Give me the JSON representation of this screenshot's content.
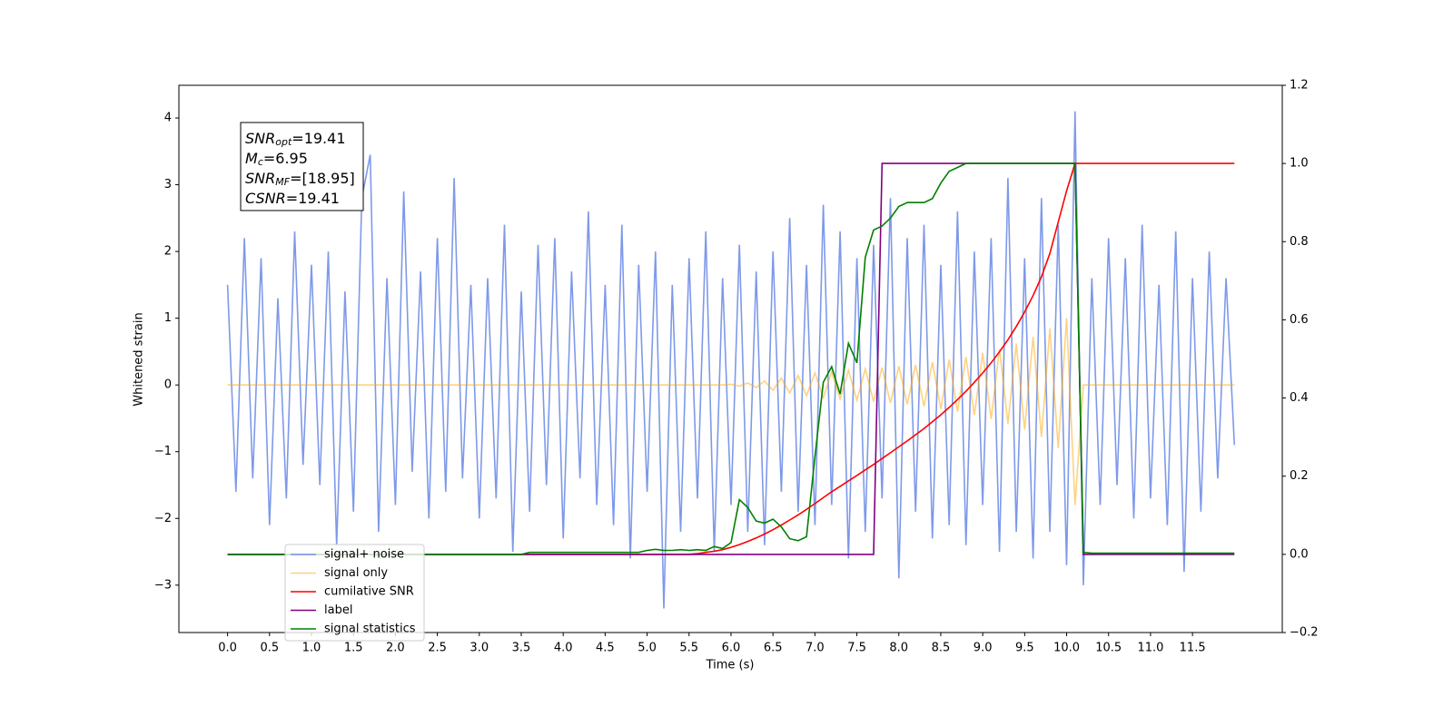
{
  "chart_data": {
    "type": "line",
    "xlabel": "Time (s)",
    "ylabel": "Whitened strain",
    "x": [
      0,
      0.1,
      0.2,
      0.3,
      0.4,
      0.5,
      0.6,
      0.7,
      0.8,
      0.9,
      1,
      1.1,
      1.2,
      1.3,
      1.4,
      1.5,
      1.6,
      1.7,
      1.8,
      1.9,
      2,
      2.1,
      2.2,
      2.3,
      2.4,
      2.5,
      2.6,
      2.7,
      2.8,
      2.9,
      3,
      3.1,
      3.2,
      3.3,
      3.4,
      3.5,
      3.6,
      3.7,
      3.8,
      3.9,
      4,
      4.1,
      4.2,
      4.3,
      4.4,
      4.5,
      4.6,
      4.7,
      4.8,
      4.9,
      5,
      5.1,
      5.2,
      5.3,
      5.4,
      5.5,
      5.6,
      5.7,
      5.8,
      5.9,
      6,
      6.1,
      6.2,
      6.3,
      6.4,
      6.5,
      6.6,
      6.7,
      6.8,
      6.9,
      7,
      7.1,
      7.2,
      7.3,
      7.4,
      7.5,
      7.6,
      7.7,
      7.8,
      7.9,
      8,
      8.1,
      8.2,
      8.3,
      8.4,
      8.5,
      8.6,
      8.7,
      8.8,
      8.9,
      9,
      9.1,
      9.2,
      9.3,
      9.4,
      9.5,
      9.6,
      9.7,
      9.8,
      9.9,
      10,
      10.1,
      10.2,
      10.3,
      10.4,
      10.5,
      10.6,
      10.7,
      10.8,
      10.9,
      11,
      11.1,
      11.2,
      11.3,
      11.4,
      11.5,
      11.6,
      11.7,
      11.8,
      11.9,
      12
    ],
    "series": [
      {
        "name": "signal+ noise",
        "color": "#7794e8",
        "axis": "y",
        "values": [
          1.5,
          -1.6,
          2.2,
          -1.4,
          1.9,
          -2.1,
          1.3,
          -1.7,
          2.3,
          -1.2,
          1.8,
          -1.5,
          2.0,
          -2.4,
          1.4,
          -1.9,
          2.8,
          3.45,
          -2.2,
          1.6,
          -1.8,
          2.9,
          -1.3,
          1.7,
          -2.0,
          2.2,
          -1.6,
          3.1,
          -1.4,
          1.5,
          -2.0,
          1.6,
          -1.7,
          2.4,
          -2.5,
          1.4,
          -1.9,
          2.1,
          -1.5,
          2.2,
          -2.3,
          1.7,
          -1.4,
          2.6,
          -1.8,
          1.5,
          -2.1,
          2.4,
          -2.6,
          1.8,
          -1.6,
          2.0,
          -3.35,
          1.5,
          -2.2,
          1.9,
          -1.7,
          2.3,
          -2.5,
          1.6,
          -1.8,
          2.1,
          -2.2,
          1.7,
          -2.4,
          2.0,
          -1.6,
          2.5,
          -1.9,
          1.8,
          -2.1,
          2.7,
          -1.8,
          2.3,
          -2.6,
          1.9,
          -2.2,
          2.1,
          -1.7,
          2.8,
          -2.9,
          2.2,
          -1.9,
          2.4,
          -2.3,
          1.8,
          -2.1,
          2.6,
          -2.4,
          2.0,
          -1.8,
          2.2,
          -2.5,
          3.1,
          -2.2,
          1.9,
          -2.6,
          2.8,
          -2.2,
          2.4,
          -2.7,
          4.1,
          -3.0,
          1.6,
          -1.8,
          2.2,
          -1.5,
          1.9,
          -2.0,
          2.4,
          -1.7,
          1.5,
          -2.1,
          2.3,
          -2.8,
          1.6,
          -1.9,
          2.0,
          -1.4,
          1.6,
          -0.9
        ]
      },
      {
        "name": "signal only",
        "color": "#ffa500",
        "axis": "y",
        "values": [
          0,
          0,
          0,
          0,
          0,
          0,
          0,
          0,
          0,
          0,
          0,
          0,
          0,
          0,
          0,
          0,
          0,
          0,
          0,
          0,
          0,
          0,
          0,
          0,
          0,
          0,
          0,
          0,
          0,
          0,
          0,
          0,
          0,
          0,
          0,
          0,
          0,
          0,
          0,
          0,
          0,
          0,
          0,
          0,
          0,
          0,
          0,
          0,
          0,
          0,
          0,
          0,
          0,
          0,
          0,
          0,
          0,
          0,
          0,
          0,
          0.01,
          -0.02,
          0.03,
          -0.04,
          0.06,
          -0.08,
          0.1,
          -0.12,
          0.14,
          -0.16,
          0.18,
          -0.19,
          0.2,
          -0.21,
          0.22,
          -0.23,
          0.24,
          -0.25,
          0.26,
          -0.27,
          0.28,
          -0.29,
          0.3,
          -0.32,
          0.34,
          -0.36,
          0.38,
          -0.4,
          0.42,
          -0.45,
          0.48,
          -0.51,
          0.54,
          -0.58,
          0.62,
          -0.67,
          0.72,
          -0.78,
          0.85,
          -0.95,
          1.0,
          -1.8,
          0,
          0,
          0,
          0,
          0,
          0,
          0,
          0,
          0,
          0,
          0,
          0,
          0,
          0,
          0,
          0,
          0,
          0,
          0
        ]
      },
      {
        "name": "cumilative SNR",
        "color": "#ff0000",
        "axis": "y2",
        "values": [
          0,
          0,
          0,
          0,
          0,
          0,
          0,
          0,
          0,
          0,
          0,
          0,
          0,
          0,
          0,
          0,
          0,
          0,
          0,
          0,
          0,
          0,
          0,
          0,
          0,
          0,
          0,
          0,
          0,
          0,
          0,
          0,
          0,
          0,
          0,
          0,
          0,
          0,
          0,
          0,
          0,
          0,
          0,
          0,
          0,
          0,
          0,
          0,
          0,
          0,
          0,
          0,
          0,
          0,
          0,
          0,
          0.002,
          0.005,
          0.008,
          0.012,
          0.018,
          0.025,
          0.033,
          0.042,
          0.052,
          0.063,
          0.075,
          0.088,
          0.101,
          0.115,
          0.13,
          0.145,
          0.16,
          0.174,
          0.188,
          0.202,
          0.216,
          0.23,
          0.245,
          0.26,
          0.275,
          0.29,
          0.306,
          0.322,
          0.339,
          0.357,
          0.376,
          0.396,
          0.417,
          0.44,
          0.464,
          0.49,
          0.518,
          0.549,
          0.583,
          0.62,
          0.662,
          0.71,
          0.77,
          0.85,
          0.93,
          1.0,
          1.0,
          1.0,
          1.0,
          1.0,
          1.0,
          1.0,
          1.0,
          1.0,
          1.0,
          1.0,
          1.0,
          1.0,
          1.0,
          1.0,
          1.0,
          1.0,
          1.0,
          1.0,
          1.0
        ]
      },
      {
        "name": "label",
        "color": "#800080",
        "axis": "y2",
        "values": [
          0,
          0,
          0,
          0,
          0,
          0,
          0,
          0,
          0,
          0,
          0,
          0,
          0,
          0,
          0,
          0,
          0,
          0,
          0,
          0,
          0,
          0,
          0,
          0,
          0,
          0,
          0,
          0,
          0,
          0,
          0,
          0,
          0,
          0,
          0,
          0,
          0,
          0,
          0,
          0,
          0,
          0,
          0,
          0,
          0,
          0,
          0,
          0,
          0,
          0,
          0,
          0,
          0,
          0,
          0,
          0,
          0,
          0,
          0,
          0,
          0,
          0,
          0,
          0,
          0,
          0,
          0,
          0,
          0,
          0,
          0,
          0,
          0,
          0,
          0,
          0,
          0,
          0,
          1,
          1,
          1,
          1,
          1,
          1,
          1,
          1,
          1,
          1,
          1,
          1,
          1,
          1,
          1,
          1,
          1,
          1,
          1,
          1,
          1,
          1,
          1,
          1,
          0,
          0,
          0,
          0,
          0,
          0,
          0,
          0,
          0,
          0,
          0,
          0,
          0,
          0,
          0,
          0,
          0,
          0,
          0
        ]
      },
      {
        "name": "signal statistics",
        "color": "#008000",
        "axis": "y2",
        "values": [
          0,
          0,
          0,
          0,
          0,
          0,
          0,
          0,
          0,
          0,
          0,
          0,
          0,
          0,
          0,
          0,
          0,
          0,
          0,
          0,
          0,
          0,
          0,
          0,
          0,
          0,
          0,
          0,
          0,
          0,
          0,
          0,
          0,
          0,
          0,
          0,
          0.005,
          0.005,
          0.005,
          0.005,
          0.005,
          0.005,
          0.005,
          0.005,
          0.005,
          0.005,
          0.005,
          0.005,
          0.005,
          0.005,
          0.01,
          0.013,
          0.01,
          0.01,
          0.012,
          0.01,
          0.012,
          0.01,
          0.02,
          0.015,
          0.03,
          0.14,
          0.12,
          0.085,
          0.08,
          0.09,
          0.07,
          0.04,
          0.035,
          0.045,
          0.25,
          0.44,
          0.48,
          0.41,
          0.54,
          0.49,
          0.76,
          0.83,
          0.84,
          0.86,
          0.89,
          0.9,
          0.9,
          0.9,
          0.91,
          0.95,
          0.98,
          0.99,
          1.0,
          1.0,
          1.0,
          1.0,
          1.0,
          1.0,
          1.0,
          1.0,
          1.0,
          1.0,
          1.0,
          1.0,
          1.0,
          1.0,
          0.005,
          0.003,
          0.003,
          0.003,
          0.003,
          0.003,
          0.003,
          0.003,
          0.003,
          0.003,
          0.003,
          0.003,
          0.003,
          0.003,
          0.003,
          0.003,
          0.003,
          0.003,
          0.003
        ]
      }
    ],
    "xlim": [
      -0.58,
      12.57
    ],
    "ylim": [
      -3.71,
      4.49
    ],
    "y2lim": [
      -0.2,
      1.2
    ],
    "xticks": [
      {
        "value": 0,
        "label": "0.0"
      },
      0.5,
      {
        "value": 1,
        "label": "1.0"
      },
      1.5,
      {
        "value": 2,
        "label": "2.0"
      },
      2.5,
      {
        "value": 3,
        "label": "3.0"
      },
      3.5,
      {
        "value": 4,
        "label": "4.0"
      },
      4.5,
      {
        "value": 5,
        "label": "5.0"
      },
      5.5,
      {
        "value": 6,
        "label": "6.0"
      },
      6.5,
      {
        "value": 7,
        "label": "7.0"
      },
      7.5,
      {
        "value": 8,
        "label": "8.0"
      },
      8.5,
      {
        "value": 9,
        "label": "9.0"
      },
      9.5,
      {
        "value": 10,
        "label": "10.0"
      },
      10.5,
      {
        "value": 11,
        "label": "11.0"
      },
      11.5
    ],
    "yticks": [
      {
        "value": -3,
        "label": "−3"
      },
      {
        "value": -2,
        "label": "−2"
      },
      {
        "value": -1,
        "label": "−1"
      },
      0,
      1,
      2,
      3,
      4
    ],
    "y2ticks": [
      {
        "value": -0.2,
        "label": "−0.2"
      },
      {
        "value": 0,
        "label": "0.0"
      },
      0.2,
      0.4,
      0.6,
      0.8,
      {
        "value": 1,
        "label": "1.0"
      },
      1.2
    ],
    "legend": "lower left",
    "annotations": [
      {
        "name": "SNR",
        "sub": "opt",
        "text": "=19.41"
      },
      {
        "name": "M",
        "sub": "c",
        "text": "=6.95"
      },
      {
        "name": "SNR",
        "sub": "MF",
        "text": "=[18.95]"
      },
      {
        "name": "CSNR",
        "text": "=19.41"
      }
    ]
  }
}
